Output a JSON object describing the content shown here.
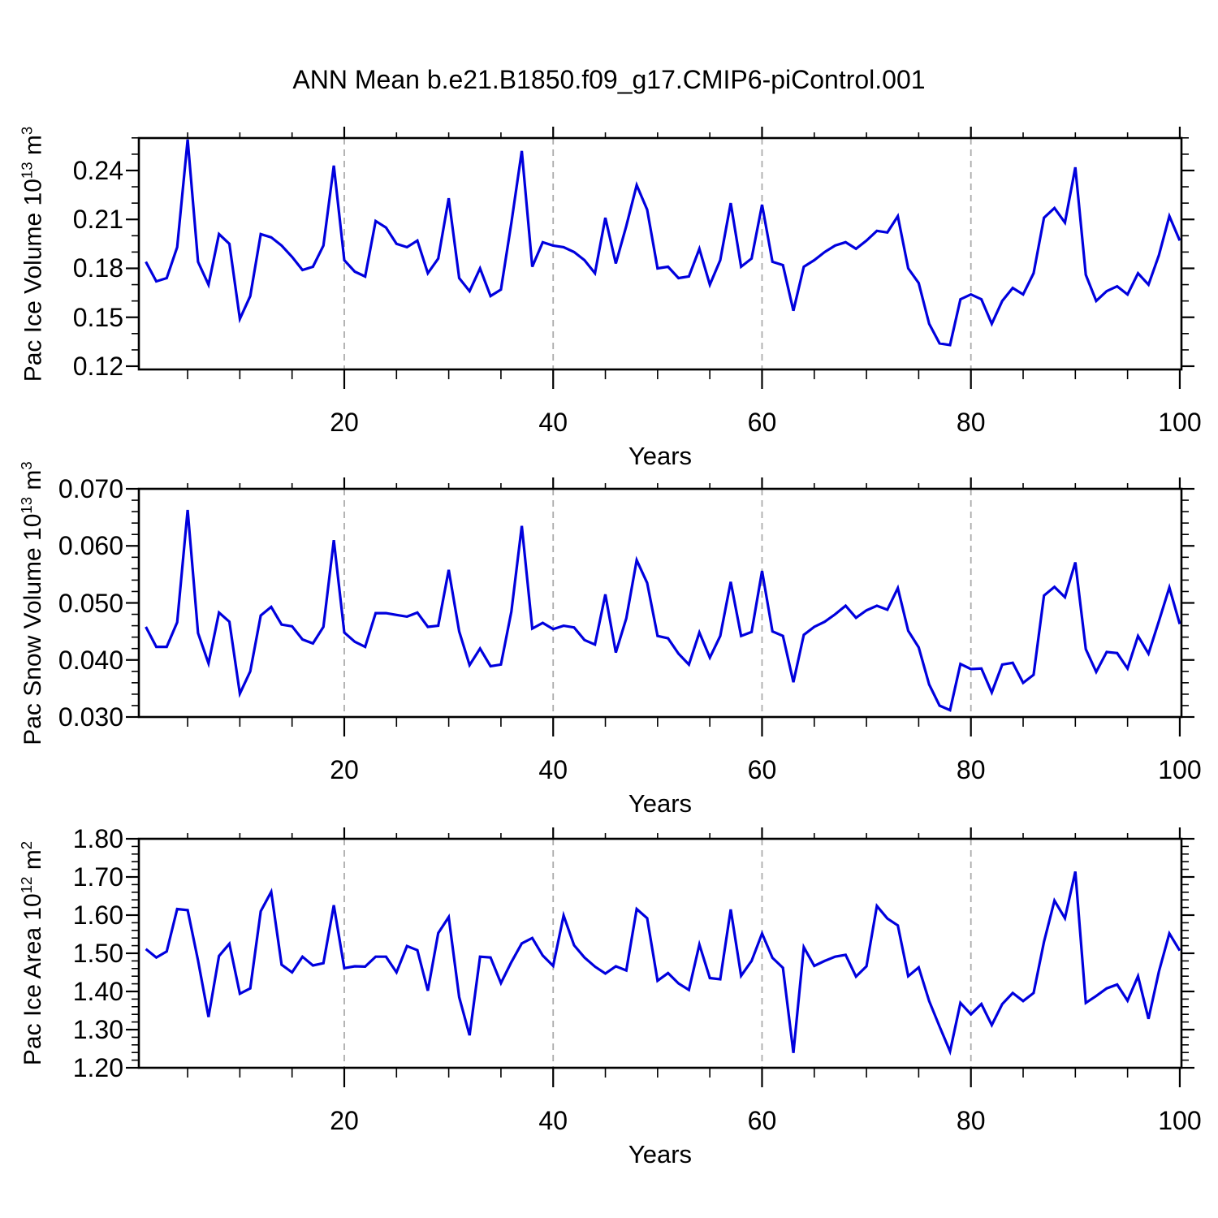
{
  "title": "ANN Mean b.e21.B1850.f09_g17.CMIP6-piControl.001",
  "figure": {
    "line_color": "#0000dd",
    "grid_color": "#ababab",
    "frame_color": "#000000",
    "background": "#ffffff"
  },
  "x_axis": {
    "label": "Years",
    "tick_values": [
      20,
      40,
      60,
      80,
      100
    ],
    "tick_labels": [
      "20",
      "40",
      "60",
      "80",
      "100"
    ],
    "minor_step": 5,
    "grid_values": [
      20,
      40,
      60,
      80
    ],
    "range": [
      0.33,
      100.16
    ]
  },
  "years": [
    1,
    2,
    3,
    4,
    5,
    6,
    7,
    8,
    9,
    10,
    11,
    12,
    13,
    14,
    15,
    16,
    17,
    18,
    19,
    20,
    21,
    22,
    23,
    24,
    25,
    26,
    27,
    28,
    29,
    30,
    31,
    32,
    33,
    34,
    35,
    36,
    37,
    38,
    39,
    40,
    41,
    42,
    43,
    44,
    45,
    46,
    47,
    48,
    49,
    50,
    51,
    52,
    53,
    54,
    55,
    56,
    57,
    58,
    59,
    60,
    61,
    62,
    63,
    64,
    65,
    66,
    67,
    68,
    69,
    70,
    71,
    72,
    73,
    74,
    75,
    76,
    77,
    78,
    79,
    80,
    81,
    82,
    83,
    84,
    85,
    86,
    87,
    88,
    89,
    90,
    91,
    92,
    93,
    94,
    95,
    96,
    97,
    98,
    99,
    100
  ],
  "chart_data": [
    {
      "type": "line",
      "panel": "pac-ice-volume",
      "ylabel_plain": "Pac Ice Volume 10^13 m^3",
      "ylabel_parts": [
        {
          "text": "Pac Ice Volume 10"
        },
        {
          "text": "13",
          "sup": true
        },
        {
          "text": " m"
        },
        {
          "text": "3",
          "sup": true
        }
      ],
      "xlabel": "Years",
      "ylim": [
        0.118,
        0.2599
      ],
      "ytick_values": [
        0.12,
        0.15,
        0.18,
        0.21,
        0.24
      ],
      "ytick_labels": [
        "0.12",
        "0.15",
        "0.18",
        "0.21",
        "0.24"
      ],
      "yminor_step": 0.01,
      "values": [
        0.184,
        0.172,
        0.174,
        0.193,
        0.259,
        0.184,
        0.17,
        0.201,
        0.195,
        0.149,
        0.163,
        0.201,
        0.199,
        0.194,
        0.187,
        0.179,
        0.181,
        0.194,
        0.243,
        0.185,
        0.178,
        0.175,
        0.209,
        0.205,
        0.195,
        0.193,
        0.197,
        0.177,
        0.186,
        0.223,
        0.174,
        0.166,
        0.18,
        0.163,
        0.167,
        0.208,
        0.252,
        0.181,
        0.196,
        0.194,
        0.193,
        0.19,
        0.185,
        0.177,
        0.211,
        0.183,
        0.206,
        0.231,
        0.216,
        0.18,
        0.181,
        0.174,
        0.175,
        0.192,
        0.17,
        0.185,
        0.22,
        0.181,
        0.186,
        0.219,
        0.184,
        0.182,
        0.154,
        0.181,
        0.185,
        0.19,
        0.194,
        0.196,
        0.192,
        0.197,
        0.203,
        0.202,
        0.212,
        0.18,
        0.171,
        0.146,
        0.134,
        0.133,
        0.161,
        0.164,
        0.161,
        0.146,
        0.16,
        0.168,
        0.164,
        0.177,
        0.211,
        0.217,
        0.208,
        0.242,
        0.176,
        0.16,
        0.166,
        0.169,
        0.164,
        0.177,
        0.17,
        0.188,
        0.212,
        0.197
      ]
    },
    {
      "type": "line",
      "panel": "pac-snow-volume",
      "ylabel_plain": "Pac Snow Volume 10^13 m^3",
      "ylabel_parts": [
        {
          "text": "Pac Snow Volume 10"
        },
        {
          "text": "13",
          "sup": true
        },
        {
          "text": " m"
        },
        {
          "text": "3",
          "sup": true
        }
      ],
      "xlabel": "Years",
      "ylim": [
        0.03,
        0.07
      ],
      "ytick_values": [
        0.03,
        0.04,
        0.05,
        0.06,
        0.07
      ],
      "ytick_labels": [
        "0.030",
        "0.040",
        "0.050",
        "0.060",
        "0.070"
      ],
      "yminor_step": 0.002,
      "values": [
        0.0458,
        0.0423,
        0.0423,
        0.0466,
        0.0663,
        0.0447,
        0.0394,
        0.0483,
        0.0467,
        0.0341,
        0.038,
        0.0478,
        0.0493,
        0.0462,
        0.0459,
        0.0436,
        0.0429,
        0.0458,
        0.061,
        0.0448,
        0.0432,
        0.0423,
        0.0482,
        0.0482,
        0.0479,
        0.0476,
        0.0483,
        0.0458,
        0.046,
        0.0558,
        0.045,
        0.0391,
        0.042,
        0.0389,
        0.0392,
        0.0485,
        0.0635,
        0.0455,
        0.0465,
        0.0454,
        0.046,
        0.0457,
        0.0435,
        0.0427,
        0.0515,
        0.0413,
        0.0473,
        0.0575,
        0.0535,
        0.0442,
        0.0438,
        0.0411,
        0.0392,
        0.0448,
        0.0404,
        0.0442,
        0.0537,
        0.0442,
        0.0449,
        0.0556,
        0.045,
        0.0442,
        0.0361,
        0.0444,
        0.0458,
        0.0467,
        0.048,
        0.0495,
        0.0474,
        0.0487,
        0.0495,
        0.0488,
        0.0526,
        0.0451,
        0.0422,
        0.0357,
        0.032,
        0.0312,
        0.0393,
        0.0384,
        0.0385,
        0.0343,
        0.0392,
        0.0395,
        0.036,
        0.0374,
        0.0513,
        0.0528,
        0.051,
        0.0571,
        0.0419,
        0.0379,
        0.0414,
        0.0412,
        0.0385,
        0.0442,
        0.0411,
        0.0468,
        0.0527,
        0.0463
      ]
    },
    {
      "type": "line",
      "panel": "pac-ice-area",
      "ylabel_plain": "Pac Ice Area 10^12 m^2",
      "ylabel_parts": [
        {
          "text": "Pac Ice Area 10"
        },
        {
          "text": "12",
          "sup": true
        },
        {
          "text": " m"
        },
        {
          "text": "2",
          "sup": true
        }
      ],
      "xlabel": "Years",
      "ylim": [
        1.2,
        1.8
      ],
      "ytick_values": [
        1.2,
        1.3,
        1.4,
        1.5,
        1.6,
        1.7,
        1.8
      ],
      "ytick_labels": [
        "1.20",
        "1.30",
        "1.40",
        "1.50",
        "1.60",
        "1.70",
        "1.80"
      ],
      "yminor_step": 0.02,
      "values": [
        1.511,
        1.489,
        1.505,
        1.616,
        1.613,
        1.481,
        1.333,
        1.493,
        1.525,
        1.394,
        1.408,
        1.61,
        1.661,
        1.47,
        1.45,
        1.491,
        1.468,
        1.474,
        1.626,
        1.461,
        1.466,
        1.465,
        1.491,
        1.491,
        1.45,
        1.519,
        1.508,
        1.402,
        1.553,
        1.595,
        1.385,
        1.285,
        1.491,
        1.489,
        1.422,
        1.477,
        1.526,
        1.54,
        1.494,
        1.467,
        1.599,
        1.521,
        1.489,
        1.465,
        1.447,
        1.466,
        1.455,
        1.616,
        1.592,
        1.428,
        1.448,
        1.421,
        1.404,
        1.523,
        1.435,
        1.432,
        1.615,
        1.441,
        1.48,
        1.552,
        1.488,
        1.462,
        1.239,
        1.516,
        1.467,
        1.48,
        1.491,
        1.496,
        1.439,
        1.466,
        1.624,
        1.591,
        1.573,
        1.44,
        1.463,
        1.375,
        1.308,
        1.243,
        1.37,
        1.34,
        1.367,
        1.312,
        1.367,
        1.396,
        1.375,
        1.396,
        1.53,
        1.638,
        1.592,
        1.714,
        1.37,
        1.388,
        1.408,
        1.418,
        1.376,
        1.44,
        1.328,
        1.452,
        1.552,
        1.507
      ]
    }
  ]
}
